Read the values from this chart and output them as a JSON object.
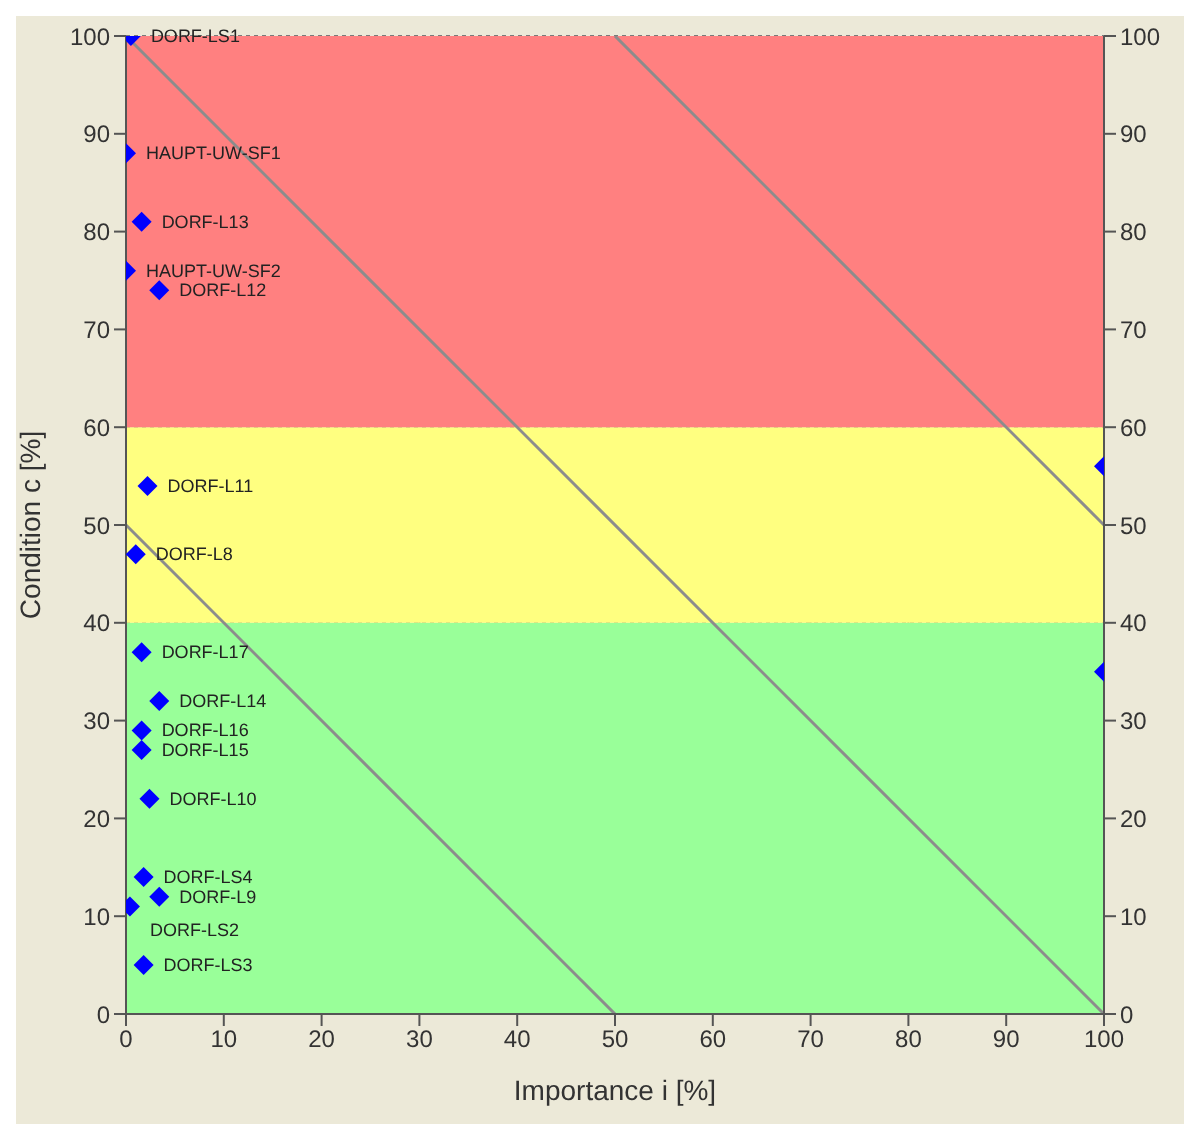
{
  "chart_data": {
    "type": "scatter",
    "xlabel": "Importance i [%]",
    "ylabel": "Condition c [%]",
    "xlim": [
      0,
      100
    ],
    "xticks": [
      0,
      10,
      20,
      30,
      40,
      50,
      60,
      70,
      80,
      90,
      100
    ],
    "ylim": [
      0,
      100
    ],
    "yticks": [
      0,
      10,
      20,
      30,
      40,
      50,
      60,
      70,
      80,
      90,
      100
    ],
    "y2lim": [
      0,
      100
    ],
    "y2ticks": [
      0,
      10,
      20,
      30,
      40,
      50,
      60,
      70,
      80,
      90,
      100
    ],
    "grid": true,
    "bands": [
      {
        "axis": "y",
        "from": 0,
        "to": 40,
        "color": "#99ff99"
      },
      {
        "axis": "y",
        "from": 40,
        "to": 60,
        "color": "#ffff80"
      },
      {
        "axis": "y",
        "from": 60,
        "to": 100,
        "color": "#ff8080"
      }
    ],
    "series": [
      {
        "type": "line",
        "marker": "none",
        "color": "#8c8c8c",
        "x": [
          0,
          50
        ],
        "values": [
          50,
          0
        ]
      },
      {
        "type": "line",
        "marker": "none",
        "color": "#8c8c8c",
        "x": [
          0,
          100
        ],
        "values": [
          100,
          0
        ]
      },
      {
        "type": "line",
        "marker": "none",
        "color": "#8c8c8c",
        "x": [
          50,
          100
        ],
        "values": [
          100,
          50
        ]
      },
      {
        "marker": "diamond",
        "color": "#0000ff",
        "x": [
          0.5,
          0,
          1.6,
          0,
          3.4,
          2.2,
          1,
          1.6,
          3.4,
          1.6,
          1.6,
          2.4,
          1.8,
          3.4,
          0.4,
          1.8,
          100,
          100
        ],
        "values": [
          100,
          88,
          81,
          76,
          74,
          54,
          47,
          37,
          32,
          29,
          27,
          22,
          14,
          12,
          11,
          5,
          56,
          35
        ]
      }
    ],
    "annotations": [
      {
        "text": "DORF-LS1",
        "x": 0.5,
        "y": 100
      },
      {
        "text": "HAUPT-UW-SF1",
        "x": 0,
        "y": 88
      },
      {
        "text": "DORF-L13",
        "x": 1.6,
        "y": 81
      },
      {
        "text": "HAUPT-UW-SF2",
        "x": 0,
        "y": 76
      },
      {
        "text": "DORF-L12",
        "x": 3.4,
        "y": 74
      },
      {
        "text": "DORF-L11",
        "x": 2.2,
        "y": 54
      },
      {
        "text": "DORF-L8",
        "x": 1,
        "y": 47
      },
      {
        "text": "DORF-L17",
        "x": 1.6,
        "y": 37
      },
      {
        "text": "DORF-L14",
        "x": 3.4,
        "y": 32
      },
      {
        "text": "DORF-L16",
        "x": 1.6,
        "y": 29
      },
      {
        "text": "DORF-L15",
        "x": 1.6,
        "y": 27
      },
      {
        "text": "DORF-L10",
        "x": 2.4,
        "y": 22
      },
      {
        "text": "DORF-LS4",
        "x": 1.8,
        "y": 14
      },
      {
        "text": "DORF-L9",
        "x": 3.4,
        "y": 12
      },
      {
        "text": "DORF-LS2",
        "x": 0.4,
        "y": 11
      },
      {
        "text": "DORF-LS3",
        "x": 1.8,
        "y": 5
      }
    ]
  }
}
